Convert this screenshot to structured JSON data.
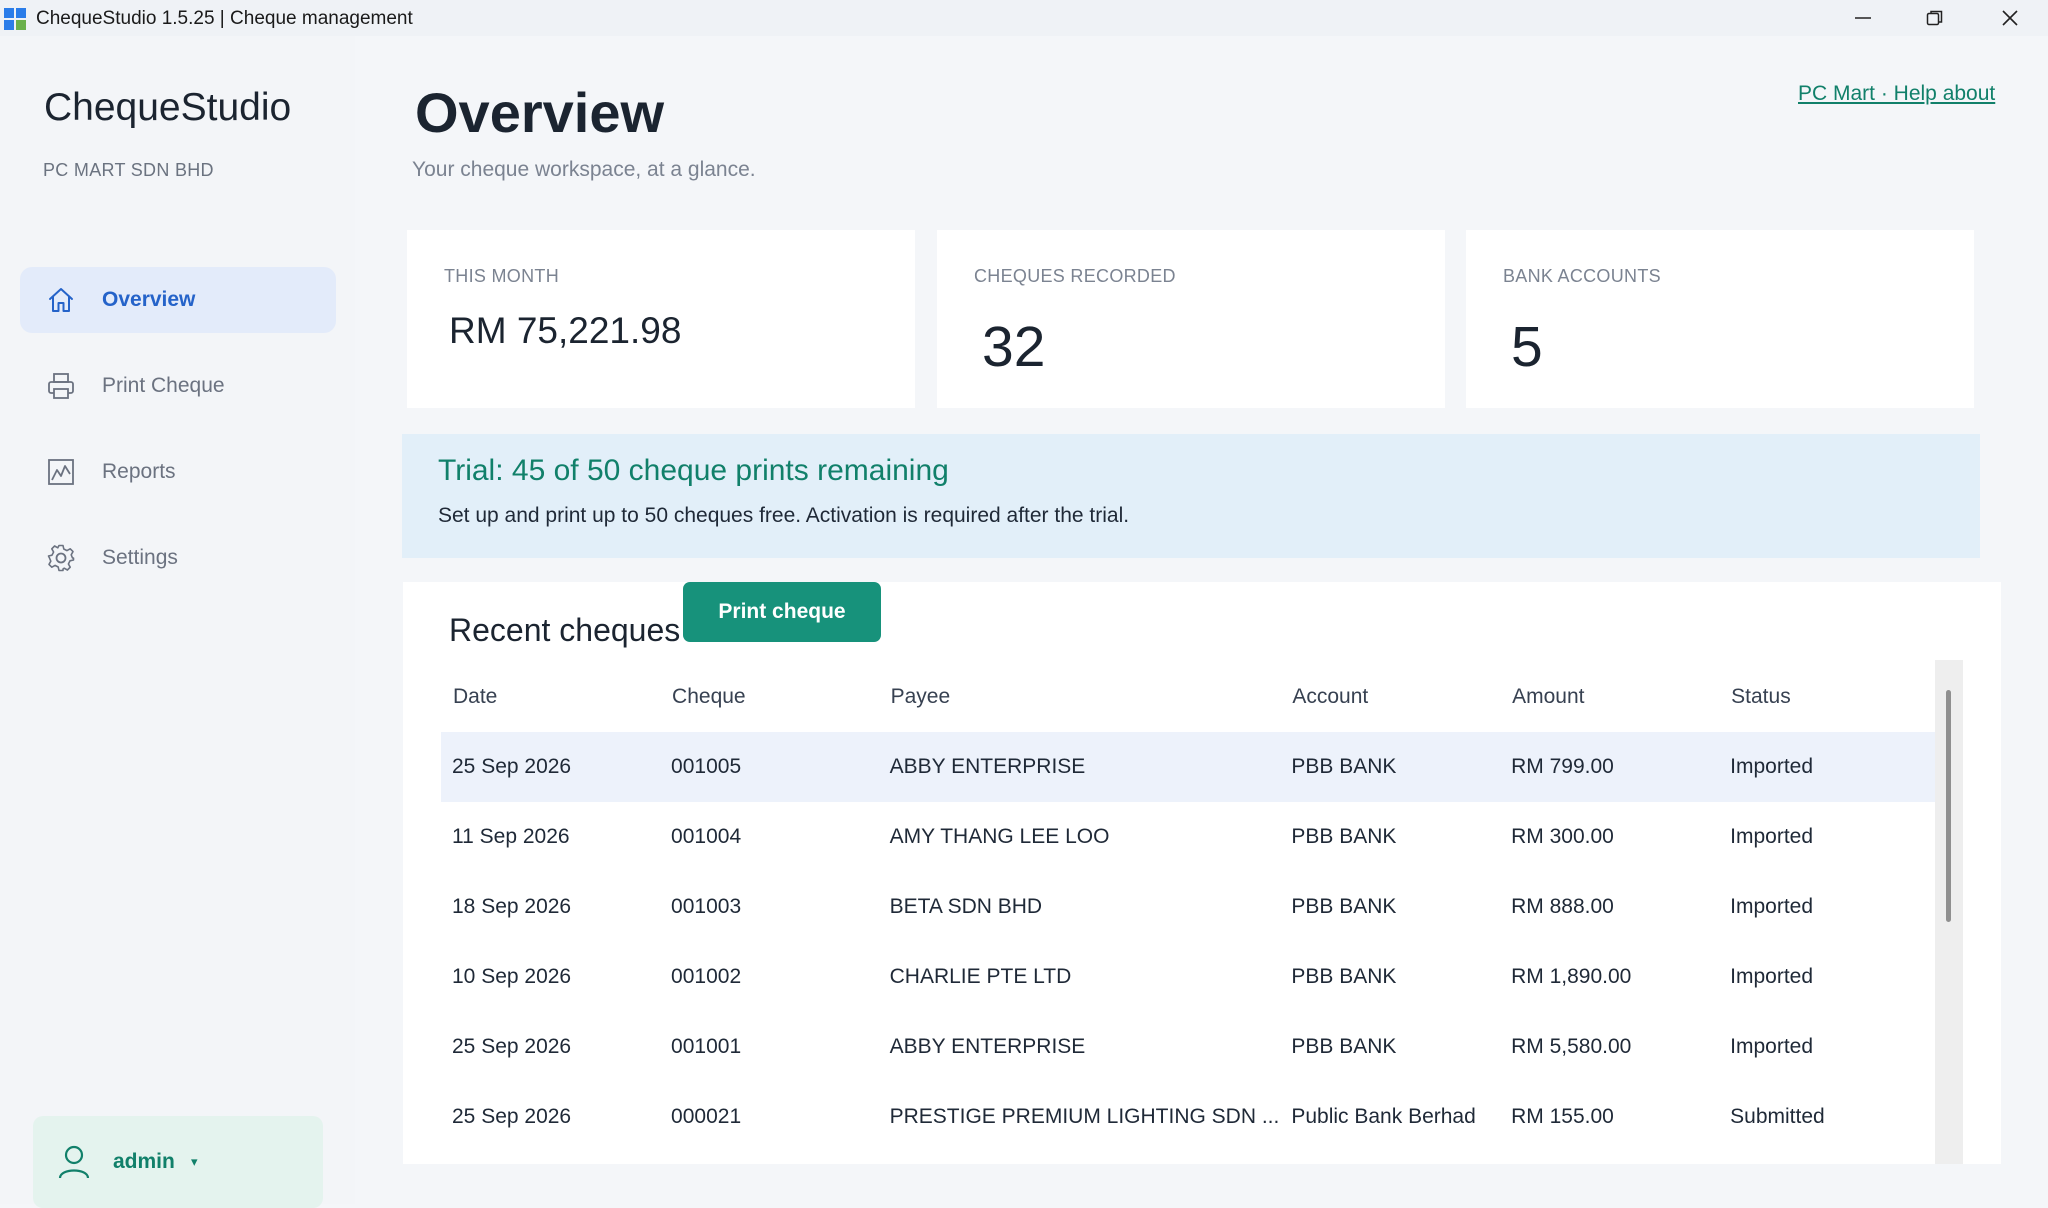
{
  "window": {
    "title": "ChequeStudio 1.5.25 | Cheque management",
    "icon_colors": [
      "#2b7de9",
      "#2b7de9",
      "#2b7de9",
      "#6ab04c"
    ]
  },
  "sidebar": {
    "brand": "ChequeStudio",
    "company": "PC MART SDN BHD",
    "items": [
      {
        "label": "Overview",
        "icon": "home-icon",
        "active": true
      },
      {
        "label": "Print Cheque",
        "icon": "printer-icon",
        "active": false
      },
      {
        "label": "Reports",
        "icon": "chart-icon",
        "active": false
      },
      {
        "label": "Settings",
        "icon": "gear-icon",
        "active": false
      }
    ],
    "user": {
      "name": "admin",
      "caret": "▾"
    }
  },
  "header": {
    "title": "Overview",
    "subtitle": "Your cheque workspace, at a glance.",
    "link": "PC Mart · Help  about"
  },
  "stats": [
    {
      "label": "THIS MONTH",
      "value": "RM 75,221.98"
    },
    {
      "label": "CHEQUES RECORDED",
      "value": "32"
    },
    {
      "label": "BANK ACCOUNTS",
      "value": "5"
    }
  ],
  "trial": {
    "title": "Trial: 45 of 50 cheque prints remaining",
    "text": "Set up and print up to 50 cheques free. Activation is required after the trial."
  },
  "recent": {
    "title": "Recent cheques",
    "button": "Print cheque",
    "columns": [
      "Date",
      "Cheque",
      "Payee",
      "Account",
      "Amount",
      "Status"
    ],
    "rows": [
      [
        "25 Sep 2026",
        "001005",
        "ABBY ENTERPRISE",
        "PBB BANK",
        "RM 799.00",
        "Imported"
      ],
      [
        "11 Sep 2026",
        "001004",
        "AMY THANG LEE LOO",
        "PBB BANK",
        "RM 300.00",
        "Imported"
      ],
      [
        "18 Sep 2026",
        "001003",
        "BETA SDN BHD",
        "PBB BANK",
        "RM 888.00",
        "Imported"
      ],
      [
        "10 Sep 2026",
        "001002",
        "CHARLIE PTE LTD",
        "PBB BANK",
        "RM 1,890.00",
        "Imported"
      ],
      [
        "25 Sep 2026",
        "001001",
        "ABBY ENTERPRISE",
        "PBB BANK",
        "RM 5,580.00",
        "Imported"
      ],
      [
        "25 Sep 2026",
        "000021",
        "PRESTIGE PREMIUM LIGHTING  SDN ...",
        "Public Bank Berhad",
        "RM 155.00",
        "Submitted"
      ]
    ]
  },
  "colors": {
    "accent": "#17927b",
    "nav_active_bg": "#e3ebfa",
    "nav_active_text": "#2563c9",
    "trial_bg": "#e2eff9",
    "selected_row": "#edf2fb"
  }
}
